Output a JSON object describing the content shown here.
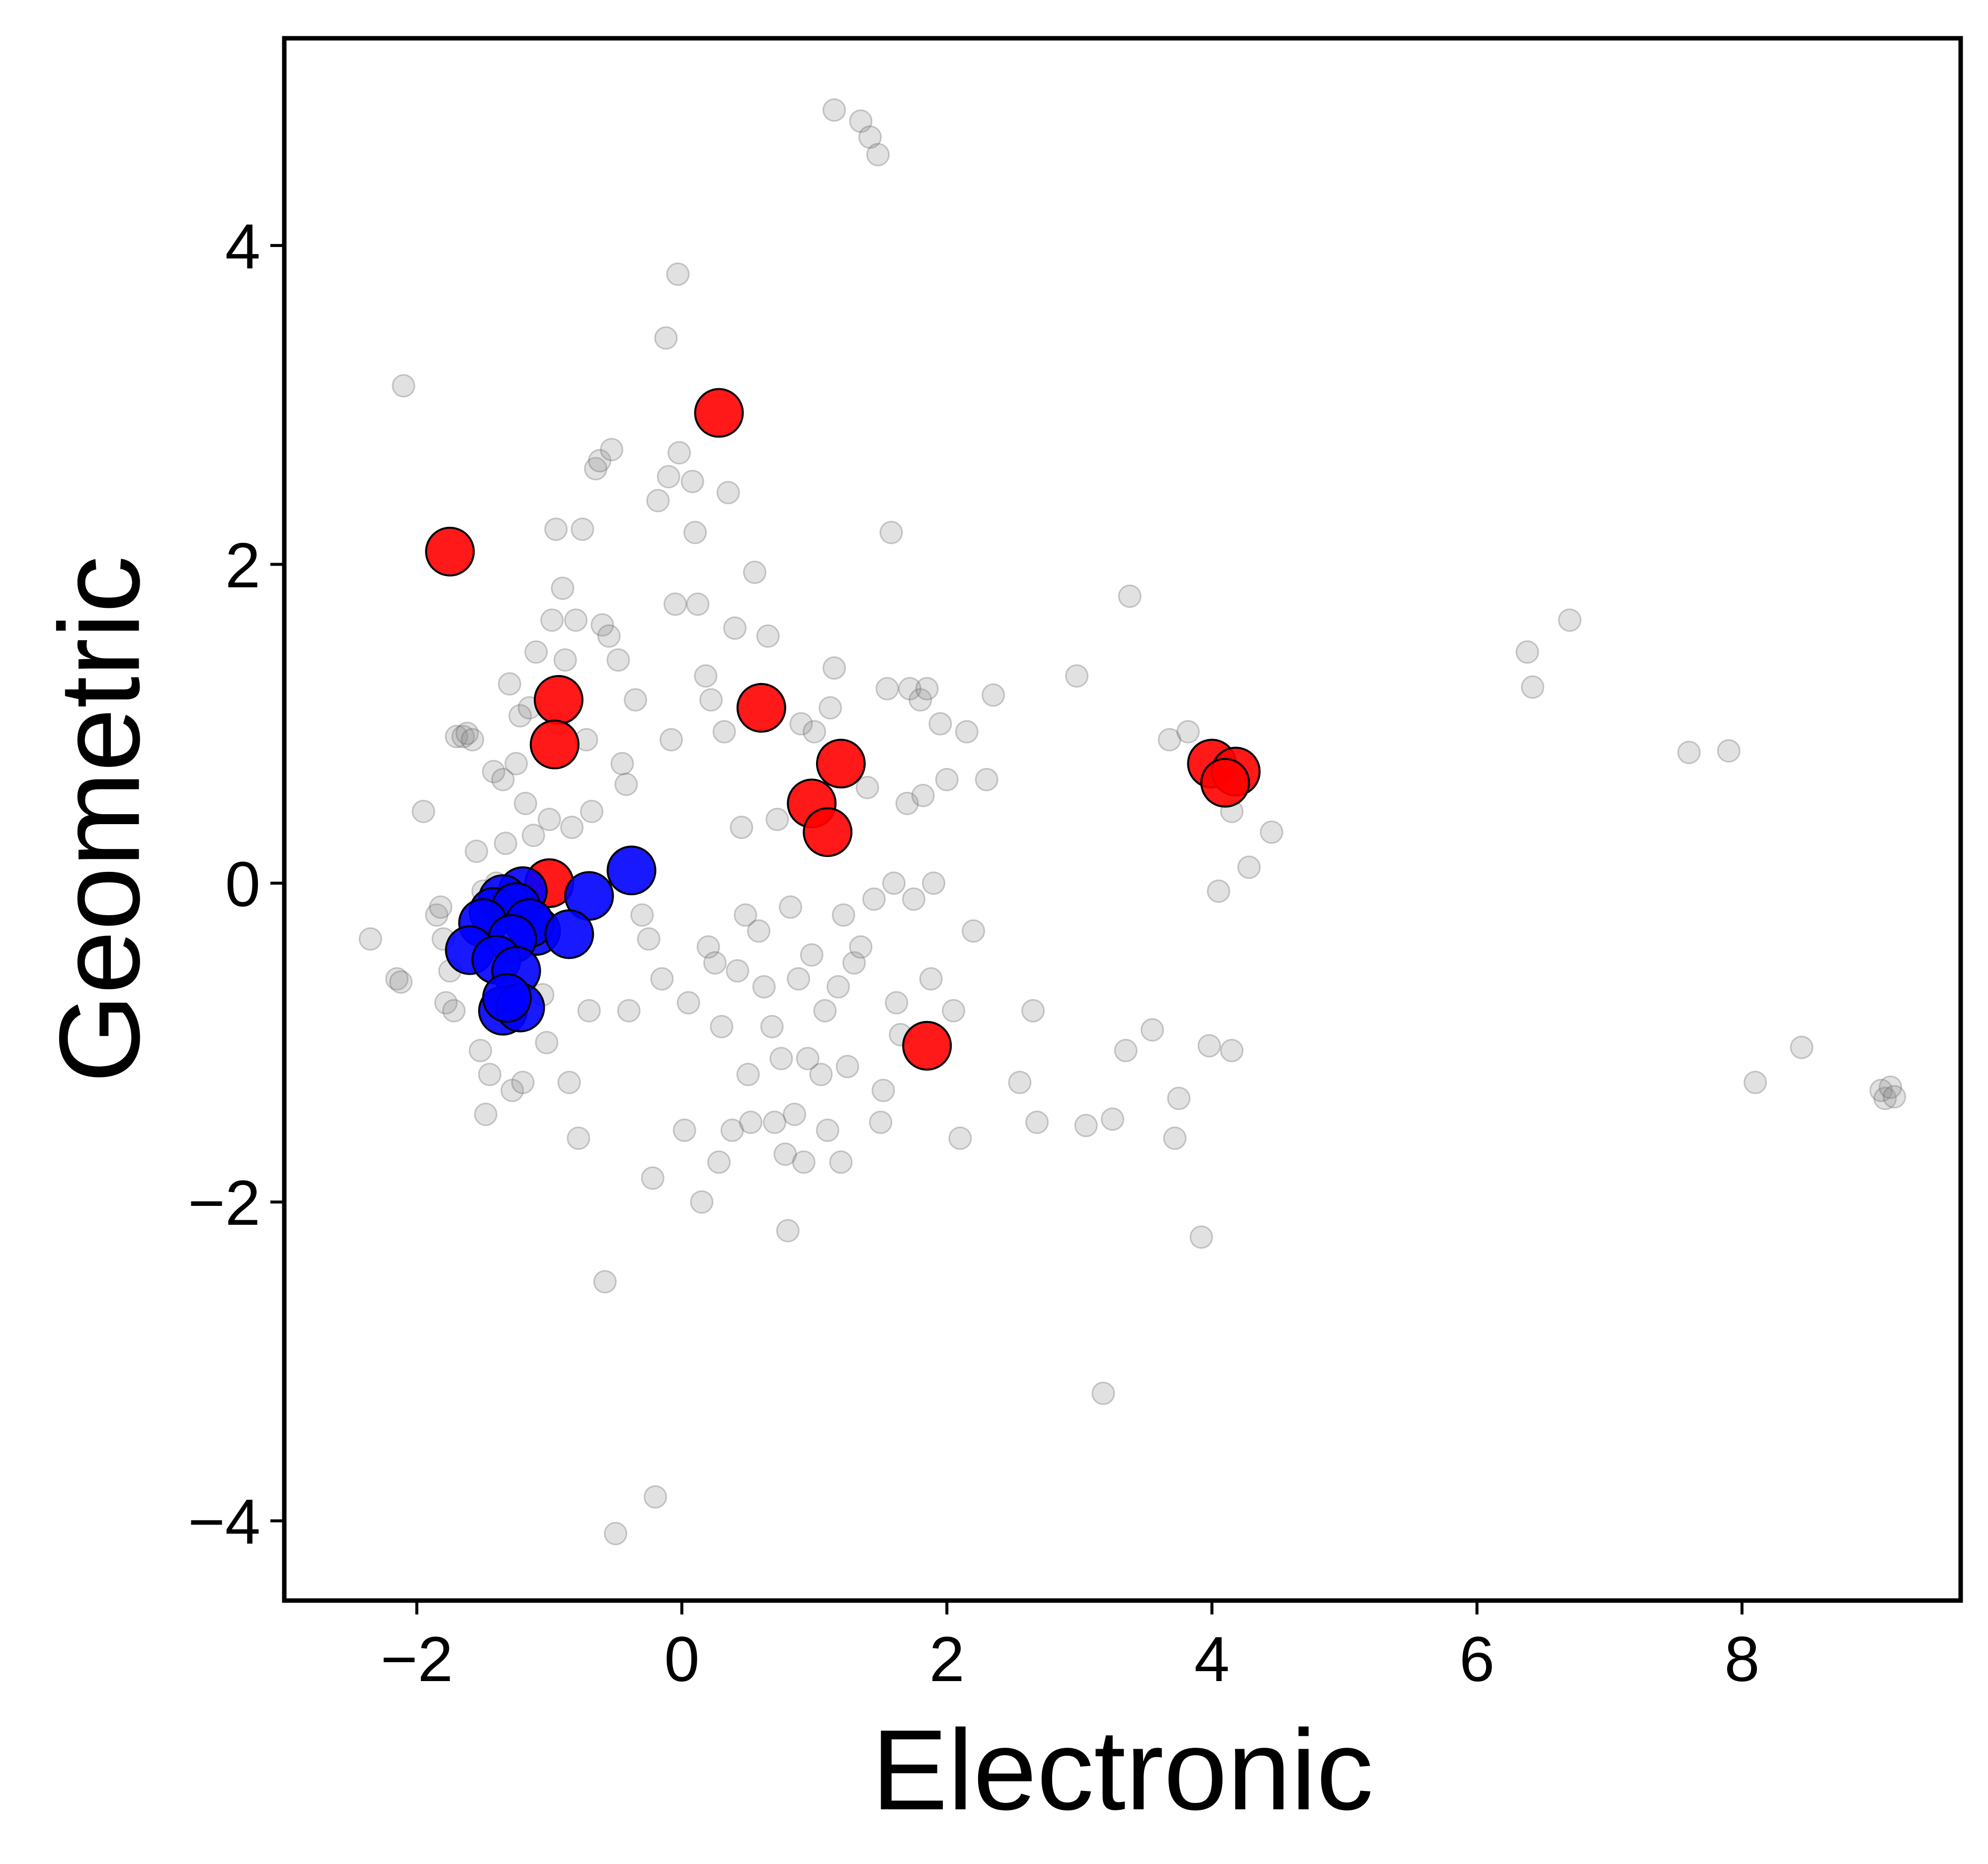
{
  "chart_data": {
    "type": "scatter",
    "title": "",
    "xlabel": "Electronic",
    "ylabel": "Geometric",
    "xlim": [
      -3.0,
      9.65
    ],
    "ylim": [
      -4.5,
      5.3
    ],
    "xticks": [
      -2,
      0,
      2,
      4,
      6,
      8
    ],
    "yticks": [
      -4,
      -2,
      0,
      2,
      4
    ],
    "xtick_labels": [
      "−2",
      "0",
      "2",
      "4",
      "6",
      "8"
    ],
    "ytick_labels": [
      "−4",
      "−2",
      "0",
      "2",
      "4"
    ],
    "grid": false,
    "legend": "none",
    "series": [
      {
        "color": "#888888",
        "points": [
          [
            -2.35,
            -0.35
          ],
          [
            -2.15,
            -0.6
          ],
          [
            -2.12,
            -0.62
          ],
          [
            -2.1,
            3.12
          ],
          [
            -1.95,
            0.45
          ],
          [
            -1.85,
            -0.2
          ],
          [
            -1.82,
            -0.15
          ],
          [
            -1.8,
            -0.35
          ],
          [
            -1.78,
            -0.75
          ],
          [
            -1.75,
            -0.55
          ],
          [
            -1.72,
            -0.8
          ],
          [
            -1.7,
            0.92
          ],
          [
            -1.65,
            0.92
          ],
          [
            -1.62,
            0.94
          ],
          [
            -1.58,
            0.9
          ],
          [
            -1.55,
            0.2
          ],
          [
            -1.52,
            -1.05
          ],
          [
            -1.5,
            -0.05
          ],
          [
            -1.48,
            -1.45
          ],
          [
            -1.45,
            -1.2
          ],
          [
            -1.42,
            0.7
          ],
          [
            -1.4,
            0.0
          ],
          [
            -1.38,
            -0.25
          ],
          [
            -1.35,
            0.65
          ],
          [
            -1.33,
            0.25
          ],
          [
            -1.3,
            1.25
          ],
          [
            -1.28,
            -1.3
          ],
          [
            -1.25,
            0.75
          ],
          [
            -1.22,
            1.05
          ],
          [
            -1.2,
            -1.25
          ],
          [
            -1.18,
            0.5
          ],
          [
            -1.15,
            1.1
          ],
          [
            -1.12,
            0.3
          ],
          [
            -1.1,
            1.45
          ],
          [
            -1.05,
            -0.7
          ],
          [
            -1.02,
            -1.0
          ],
          [
            -1.0,
            0.4
          ],
          [
            -0.98,
            1.65
          ],
          [
            -0.95,
            2.22
          ],
          [
            -0.93,
            1.0
          ],
          [
            -0.9,
            1.85
          ],
          [
            -0.88,
            1.4
          ],
          [
            -0.85,
            -1.25
          ],
          [
            -0.83,
            0.35
          ],
          [
            -0.8,
            1.65
          ],
          [
            -0.78,
            -1.6
          ],
          [
            -0.75,
            2.22
          ],
          [
            -0.72,
            0.9
          ],
          [
            -0.7,
            -0.8
          ],
          [
            -0.68,
            0.45
          ],
          [
            -0.65,
            2.6
          ],
          [
            -0.62,
            2.65
          ],
          [
            -0.6,
            1.62
          ],
          [
            -0.58,
            -2.5
          ],
          [
            -0.55,
            1.55
          ],
          [
            -0.53,
            2.72
          ],
          [
            -0.5,
            -4.08
          ],
          [
            -0.48,
            1.4
          ],
          [
            -0.45,
            0.75
          ],
          [
            -0.42,
            0.62
          ],
          [
            -0.4,
            -0.8
          ],
          [
            -0.35,
            1.15
          ],
          [
            -0.3,
            -0.2
          ],
          [
            -0.25,
            -0.35
          ],
          [
            -0.22,
            -1.85
          ],
          [
            -0.2,
            -3.85
          ],
          [
            -0.18,
            2.4
          ],
          [
            -0.15,
            -0.6
          ],
          [
            -0.12,
            3.42
          ],
          [
            -0.1,
            2.55
          ],
          [
            -0.08,
            0.9
          ],
          [
            -0.05,
            1.75
          ],
          [
            -0.03,
            3.82
          ],
          [
            -0.02,
            2.7
          ],
          [
            0.02,
            -1.55
          ],
          [
            0.05,
            -0.75
          ],
          [
            0.08,
            2.52
          ],
          [
            0.1,
            2.2
          ],
          [
            0.12,
            1.75
          ],
          [
            0.15,
            -2.0
          ],
          [
            0.18,
            1.3
          ],
          [
            0.2,
            -0.4
          ],
          [
            0.22,
            1.15
          ],
          [
            0.25,
            -0.5
          ],
          [
            0.28,
            -1.75
          ],
          [
            0.3,
            -0.9
          ],
          [
            0.32,
            0.95
          ],
          [
            0.35,
            2.45
          ],
          [
            0.38,
            -1.55
          ],
          [
            0.4,
            1.6
          ],
          [
            0.42,
            -0.55
          ],
          [
            0.45,
            0.35
          ],
          [
            0.48,
            -0.2
          ],
          [
            0.5,
            -1.2
          ],
          [
            0.52,
            -1.5
          ],
          [
            0.55,
            1.95
          ],
          [
            0.58,
            -0.3
          ],
          [
            0.62,
            -0.65
          ],
          [
            0.65,
            1.55
          ],
          [
            0.68,
            -0.9
          ],
          [
            0.7,
            -1.5
          ],
          [
            0.72,
            0.4
          ],
          [
            0.75,
            -1.1
          ],
          [
            0.78,
            -1.7
          ],
          [
            0.8,
            -2.18
          ],
          [
            0.82,
            -0.15
          ],
          [
            0.85,
            -1.45
          ],
          [
            0.88,
            -0.6
          ],
          [
            0.9,
            1.0
          ],
          [
            0.92,
            -1.75
          ],
          [
            0.95,
            -1.1
          ],
          [
            0.98,
            -0.45
          ],
          [
            1.0,
            0.95
          ],
          [
            1.05,
            -1.2
          ],
          [
            1.08,
            -0.8
          ],
          [
            1.1,
            -1.55
          ],
          [
            1.12,
            1.1
          ],
          [
            1.15,
            1.35
          ],
          [
            1.18,
            -0.65
          ],
          [
            1.2,
            -1.75
          ],
          [
            1.22,
            -0.2
          ],
          [
            1.25,
            -1.15
          ],
          [
            1.3,
            -0.5
          ],
          [
            1.35,
            -0.4
          ],
          [
            1.4,
            0.6
          ],
          [
            1.45,
            -0.1
          ],
          [
            1.5,
            -1.5
          ],
          [
            1.52,
            -1.3
          ],
          [
            1.55,
            1.22
          ],
          [
            1.58,
            2.2
          ],
          [
            1.6,
            0.0
          ],
          [
            1.62,
            -0.75
          ],
          [
            1.65,
            -0.95
          ],
          [
            1.7,
            0.5
          ],
          [
            1.72,
            1.22
          ],
          [
            1.75,
            -0.1
          ],
          [
            1.8,
            1.15
          ],
          [
            1.82,
            0.55
          ],
          [
            1.85,
            1.22
          ],
          [
            1.88,
            -0.6
          ],
          [
            1.9,
            0.0
          ],
          [
            1.95,
            1.0
          ],
          [
            2.0,
            0.65
          ],
          [
            2.05,
            -0.8
          ],
          [
            2.1,
            -1.6
          ],
          [
            2.15,
            0.95
          ],
          [
            2.2,
            -0.3
          ],
          [
            2.3,
            0.65
          ],
          [
            2.35,
            1.18
          ],
          [
            2.55,
            -1.25
          ],
          [
            2.65,
            -0.8
          ],
          [
            2.68,
            -1.5
          ],
          [
            2.98,
            1.3
          ],
          [
            3.05,
            -1.52
          ],
          [
            3.18,
            -3.2
          ],
          [
            3.25,
            -1.48
          ],
          [
            3.35,
            -1.05
          ],
          [
            3.38,
            1.8
          ],
          [
            3.55,
            -0.92
          ],
          [
            3.68,
            0.9
          ],
          [
            3.72,
            -1.6
          ],
          [
            3.75,
            -1.35
          ],
          [
            3.82,
            0.95
          ],
          [
            3.92,
            -2.22
          ],
          [
            3.98,
            -1.02
          ],
          [
            4.05,
            -0.05
          ],
          [
            4.15,
            -1.05
          ],
          [
            4.15,
            0.45
          ],
          [
            4.28,
            0.1
          ],
          [
            4.45,
            0.32
          ],
          [
            6.38,
            1.45
          ],
          [
            6.42,
            1.23
          ],
          [
            6.7,
            1.65
          ],
          [
            7.6,
            0.82
          ],
          [
            7.9,
            0.83
          ],
          [
            8.1,
            -1.25
          ],
          [
            8.45,
            -1.03
          ],
          [
            9.05,
            -1.3
          ],
          [
            9.08,
            -1.35
          ],
          [
            9.12,
            -1.28
          ],
          [
            9.15,
            -1.34
          ],
          [
            1.15,
            4.85
          ],
          [
            1.35,
            4.78
          ],
          [
            1.42,
            4.68
          ],
          [
            1.48,
            4.57
          ]
        ]
      },
      {
        "color": "#ff0000",
        "points": [
          [
            -1.75,
            2.08
          ],
          [
            0.28,
            2.95
          ],
          [
            0.6,
            1.1
          ],
          [
            1.2,
            0.75
          ],
          [
            0.98,
            0.5
          ],
          [
            1.1,
            0.32
          ],
          [
            -0.93,
            1.15
          ],
          [
            -0.96,
            0.87
          ],
          [
            -1.0,
            0.0
          ],
          [
            1.85,
            -1.02
          ],
          [
            4.0,
            0.75
          ],
          [
            4.18,
            0.7
          ],
          [
            4.1,
            0.63
          ]
        ]
      },
      {
        "color": "#0000ff",
        "points": [
          [
            -0.38,
            0.08
          ],
          [
            -0.7,
            -0.08
          ],
          [
            -1.2,
            -0.05
          ],
          [
            -1.35,
            -0.1
          ],
          [
            -1.42,
            -0.18
          ],
          [
            -1.25,
            -0.15
          ],
          [
            -1.1,
            -0.3
          ],
          [
            -1.5,
            -0.25
          ],
          [
            -1.6,
            -0.42
          ],
          [
            -1.15,
            -0.25
          ],
          [
            -0.85,
            -0.32
          ],
          [
            -1.28,
            -0.35
          ],
          [
            -1.4,
            -0.48
          ],
          [
            -1.25,
            -0.55
          ],
          [
            -1.35,
            -0.8
          ],
          [
            -1.22,
            -0.78
          ],
          [
            -1.32,
            -0.72
          ]
        ]
      }
    ]
  }
}
